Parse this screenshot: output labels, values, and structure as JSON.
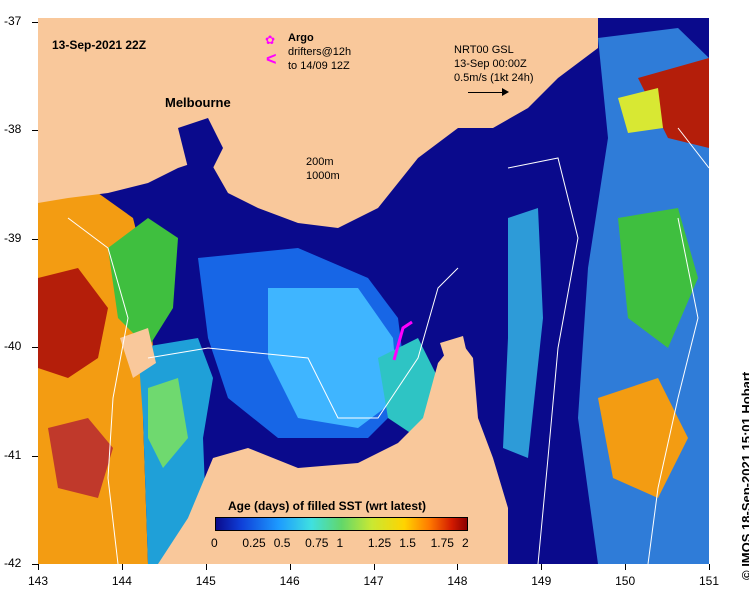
{
  "map": {
    "date_label": "13-Sep-2021 22Z",
    "city": "Melbourne",
    "legend": {
      "argo": "Argo",
      "drifters_line1": "drifters@12h",
      "drifters_line2": "to 14/09 12Z"
    },
    "current_box": {
      "line1": "NRT00 GSL",
      "line2": "13-Sep 00:00Z",
      "line3": "0.5m/s (1kt 24h)"
    },
    "isobaths": {
      "a": "200m",
      "b": "1000m"
    },
    "credit": "© IMOS 18-Sep-2021 15:01 Hobart",
    "x_ticks": [
      "143",
      "144",
      "145",
      "146",
      "147",
      "148",
      "149",
      "150",
      "151"
    ],
    "y_ticks": [
      "-37",
      "-38",
      "-39",
      "-40",
      "-41",
      "-42"
    ],
    "colorbar": {
      "title": "Age (days) of filled SST (wrt latest)",
      "ticks": [
        "0",
        "0.25",
        "0.5",
        "0.75",
        "1",
        "1.25",
        "1.5",
        "1.75",
        "2"
      ]
    },
    "colors": {
      "land": "#f9c89b",
      "deep": "#0a0a8c",
      "mid": "#1766e6",
      "light": "#3fb5ff",
      "green": "#3fbf3f",
      "orange": "#f39c12",
      "red": "#b41e0a",
      "magenta": "#ff00ff"
    }
  }
}
